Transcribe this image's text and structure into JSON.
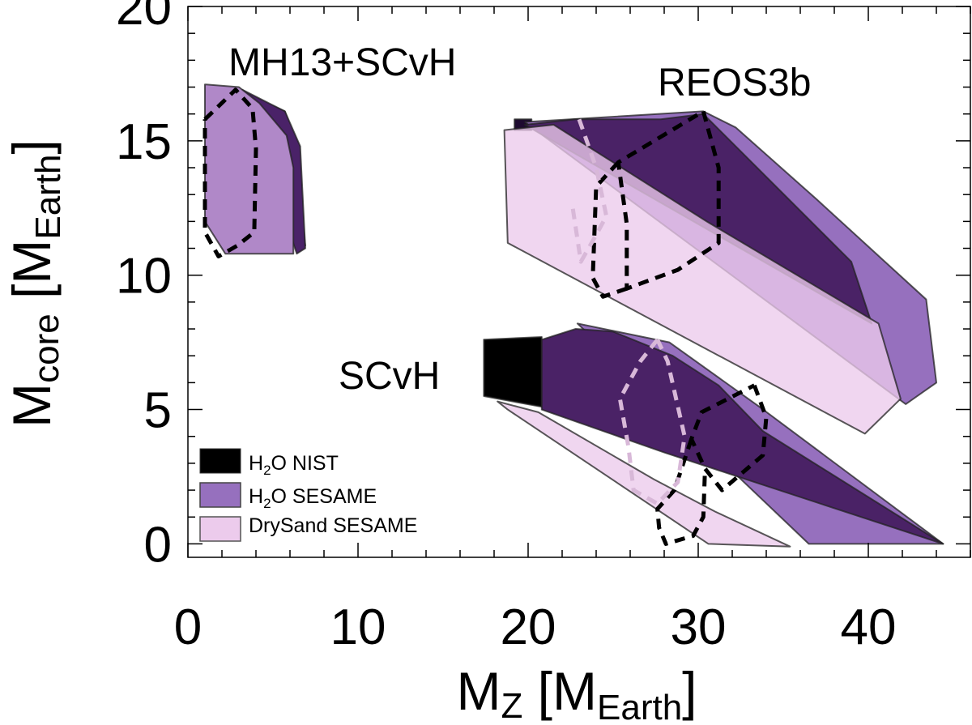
{
  "chart_data": {
    "type": "area",
    "xlabel": "M",
    "xlabel_sub": "Z",
    "xlabel_unit_open": " [M",
    "xlabel_unit_sub": "Earth",
    "xlabel_unit_close": "]",
    "ylabel": "M",
    "ylabel_sub": "core",
    "ylabel_unit_open": " [M",
    "ylabel_unit_sub": "Earth",
    "ylabel_unit_close": "]",
    "xlim": [
      0,
      46
    ],
    "ylim": [
      -0.5,
      20
    ],
    "xticks": [
      0,
      10,
      20,
      30,
      40
    ],
    "xtick_labels": [
      "0",
      "10",
      "20",
      "30",
      "40"
    ],
    "yticks": [
      0,
      5,
      10,
      15,
      20
    ],
    "ytick_labels": [
      "0",
      "5",
      "10",
      "15",
      "20"
    ],
    "annotations": [
      {
        "text": "MH13+SCvH",
        "at": [
          2.2,
          18.4
        ]
      },
      {
        "text": "REOS3b",
        "at": [
          28.1,
          17.1
        ]
      },
      {
        "text": "SCvH",
        "at": [
          8.9,
          6.4
        ]
      }
    ],
    "legend": {
      "position": "bottom-left",
      "entries": [
        {
          "key": "nist",
          "label_pre": "H",
          "label_sub": "2",
          "label_post": "O NIST",
          "color": "#000000"
        },
        {
          "key": "sesame_h2o",
          "label_pre": "H",
          "label_sub": "2",
          "label_post": "O SESAME",
          "color": "#9670be"
        },
        {
          "key": "drysand",
          "label_pre": "",
          "label_sub": "",
          "label_post": "DrySand SESAME",
          "color": "#eccbec"
        }
      ]
    },
    "series": [
      {
        "name": "MH13+SCvH H2O NIST",
        "group": "MH13+SCvH",
        "eos": "nist",
        "fill": "#2a1040",
        "opacity": 1,
        "points": [
          [
            3.2,
            16.8
          ],
          [
            5.7,
            16.1
          ],
          [
            6.2,
            15.2
          ],
          [
            6.9,
            11.1
          ],
          [
            3.2,
            16.8
          ]
        ]
      },
      {
        "name": "MH13+SCvH H2O SESAME",
        "group": "MH13+SCvH",
        "eos": "sesame_h2o",
        "fill": "#4a2268",
        "opacity": 1,
        "points": [
          [
            3.2,
            16.9
          ],
          [
            5.7,
            16.1
          ],
          [
            6.6,
            14.8
          ],
          [
            6.9,
            11.0
          ],
          [
            6.4,
            10.8
          ],
          [
            3.2,
            16.9
          ]
        ]
      },
      {
        "name": "MH13+SCvH DrySand SESAME",
        "group": "MH13+SCvH",
        "eos": "drysand",
        "fill": "#b088c8",
        "opacity": 1,
        "points": [
          [
            1.0,
            17.1
          ],
          [
            3.0,
            17.0
          ],
          [
            4.2,
            16.4
          ],
          [
            5.8,
            15.2
          ],
          [
            6.2,
            14.0
          ],
          [
            6.2,
            10.8
          ],
          [
            2.2,
            10.8
          ],
          [
            1.0,
            12.0
          ],
          [
            1.0,
            17.1
          ]
        ]
      },
      {
        "name": "REOS3b H2O NIST",
        "group": "REOS3b",
        "eos": "nist",
        "fill": "#1e0a30",
        "opacity": 1,
        "points": [
          [
            19.2,
            15.8
          ],
          [
            20.2,
            15.8
          ],
          [
            20.2,
            15.4
          ],
          [
            19.2,
            15.4
          ]
        ]
      },
      {
        "name": "REOS3b H2O SESAME",
        "group": "REOS3b",
        "eos": "sesame_h2o",
        "fill": "#9670be",
        "opacity": 1,
        "points": [
          [
            19.8,
            15.7
          ],
          [
            30.3,
            16.1
          ],
          [
            32.2,
            15.5
          ],
          [
            37.0,
            12.8
          ],
          [
            43.4,
            9.1
          ],
          [
            44.0,
            6.0
          ],
          [
            42.2,
            5.2
          ],
          [
            19.8,
            15.7
          ]
        ]
      },
      {
        "name": "REOS3b H2O NIST core",
        "group": "REOS3b",
        "eos": "nist",
        "fill": "#4a2266",
        "opacity": 1,
        "points": [
          [
            19.8,
            15.6
          ],
          [
            22.8,
            15.8
          ],
          [
            27.8,
            15.8
          ],
          [
            30.3,
            16.0
          ],
          [
            39.0,
            10.5
          ],
          [
            40.2,
            8.2
          ],
          [
            19.8,
            15.6
          ]
        ]
      },
      {
        "name": "REOS3b DrySand SESAME",
        "group": "REOS3b",
        "eos": "drysand",
        "fill": "#eccbec",
        "opacity": 0.78,
        "points": [
          [
            18.6,
            15.4
          ],
          [
            21.5,
            15.6
          ],
          [
            30.5,
            12.0
          ],
          [
            40.6,
            8.2
          ],
          [
            41.9,
            5.4
          ],
          [
            39.8,
            4.1
          ],
          [
            18.8,
            11.2
          ],
          [
            18.6,
            15.4
          ]
        ]
      },
      {
        "name": "SCvH H2O NIST",
        "group": "SCvH",
        "eos": "nist",
        "fill": "#000000",
        "opacity": 1,
        "points": [
          [
            17.4,
            7.6
          ],
          [
            20.8,
            7.7
          ],
          [
            20.8,
            5.1
          ],
          [
            17.4,
            5.5
          ]
        ]
      },
      {
        "name": "SCvH H2O SESAME",
        "group": "SCvH",
        "eos": "sesame_h2o",
        "fill": "#9670be",
        "opacity": 1,
        "points": [
          [
            22.9,
            8.2
          ],
          [
            28.3,
            7.5
          ],
          [
            33.6,
            5.1
          ],
          [
            44.4,
            0.0
          ],
          [
            36.5,
            0.0
          ],
          [
            22.9,
            8.2
          ]
        ]
      },
      {
        "name": "SCvH H2O NIST core",
        "group": "SCvH",
        "eos": "nist",
        "fill": "#4a2266",
        "opacity": 1,
        "points": [
          [
            20.8,
            7.6
          ],
          [
            22.8,
            8.0
          ],
          [
            25.0,
            7.9
          ],
          [
            28.5,
            7.0
          ],
          [
            31.2,
            5.9
          ],
          [
            33.8,
            4.2
          ],
          [
            44.4,
            0.0
          ],
          [
            28.0,
            3.4
          ],
          [
            20.8,
            5.0
          ]
        ]
      },
      {
        "name": "SCvH DrySand SESAME",
        "group": "SCvH",
        "eos": "drysand",
        "fill": "#eccbec",
        "opacity": 0.78,
        "points": [
          [
            18.2,
            5.3
          ],
          [
            20.6,
            4.9
          ],
          [
            27.4,
            2.4
          ],
          [
            31.0,
            1.2
          ],
          [
            35.4,
            -0.1
          ],
          [
            30.6,
            0.0
          ],
          [
            18.8,
            5.0
          ],
          [
            18.2,
            5.3
          ]
        ]
      }
    ],
    "dashed_outlines": [
      {
        "name": "MH13+SCvH contour",
        "color": "#000000",
        "points": [
          [
            1.0,
            15.8
          ],
          [
            2.8,
            16.9
          ],
          [
            3.8,
            16.2
          ],
          [
            4.0,
            14.7
          ],
          [
            3.9,
            11.6
          ],
          [
            2.9,
            11.1
          ],
          [
            1.8,
            10.7
          ],
          [
            1.0,
            11.6
          ],
          [
            1.0,
            15.8
          ]
        ]
      },
      {
        "name": "REOS3b contour dark",
        "color": "#000000",
        "points": [
          [
            30.3,
            16.1
          ],
          [
            31.2,
            14.0
          ],
          [
            31.2,
            11.2
          ],
          [
            28.8,
            10.2
          ],
          [
            25.8,
            9.5
          ],
          [
            25.8,
            11.9
          ],
          [
            25.3,
            14.2
          ],
          [
            30.3,
            16.1
          ]
        ]
      },
      {
        "name": "REOS3b contour inner",
        "color": "#000000",
        "points": [
          [
            25.3,
            14.2
          ],
          [
            24.0,
            13.3
          ],
          [
            23.8,
            9.9
          ],
          [
            24.4,
            9.2
          ],
          [
            25.8,
            9.5
          ]
        ]
      },
      {
        "name": "REOS3b contour light",
        "color": "#d8b8d8",
        "points": [
          [
            23.0,
            15.8
          ],
          [
            24.0,
            14.0
          ],
          [
            24.6,
            12.2
          ],
          [
            24.0,
            11.5
          ],
          [
            23.1,
            10.5
          ],
          [
            22.6,
            12.6
          ]
        ]
      },
      {
        "name": "SCvH contour dark",
        "color": "#000000",
        "points": [
          [
            33.3,
            5.9
          ],
          [
            34.0,
            4.7
          ],
          [
            33.8,
            3.3
          ],
          [
            31.4,
            2.0
          ],
          [
            30.4,
            2.8
          ],
          [
            29.6,
            3.9
          ],
          [
            30.2,
            4.9
          ],
          [
            33.3,
            5.9
          ]
        ]
      },
      {
        "name": "SCvH contour lower",
        "color": "#000000",
        "points": [
          [
            29.6,
            3.9
          ],
          [
            28.6,
            2.0
          ],
          [
            27.6,
            1.3
          ],
          [
            27.7,
            0.6
          ],
          [
            28.1,
            0.0
          ],
          [
            29.7,
            0.3
          ],
          [
            30.3,
            1.0
          ],
          [
            30.4,
            2.8
          ]
        ]
      },
      {
        "name": "SCvH contour light",
        "color": "#d8b8d8",
        "points": [
          [
            27.6,
            7.6
          ],
          [
            26.6,
            6.8
          ],
          [
            25.4,
            5.4
          ],
          [
            25.9,
            3.6
          ],
          [
            26.2,
            2.0
          ],
          [
            27.6,
            1.5
          ],
          [
            28.8,
            2.3
          ],
          [
            29.2,
            4.0
          ],
          [
            28.2,
            6.8
          ],
          [
            27.6,
            7.6
          ]
        ]
      }
    ]
  }
}
